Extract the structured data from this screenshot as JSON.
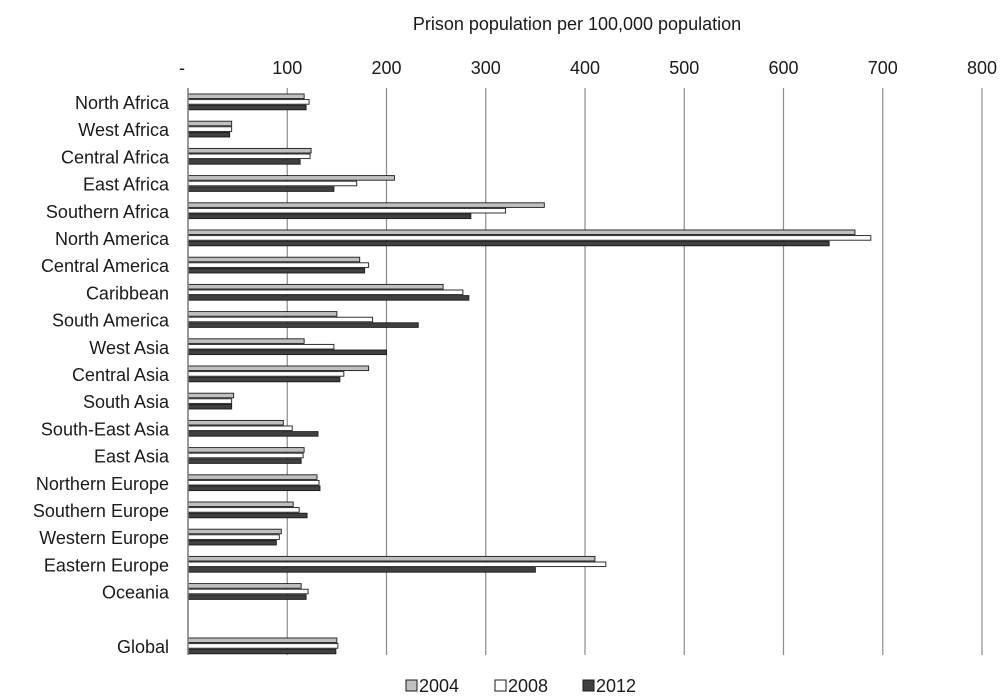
{
  "chart_data": {
    "type": "bar",
    "orientation": "horizontal",
    "title": "",
    "xlabel": "Prison population per 100,000 population",
    "ylabel": "",
    "xlim": [
      0,
      800
    ],
    "x_axis_position": "top",
    "x_ticks": [
      0,
      100,
      200,
      300,
      400,
      500,
      600,
      700,
      800
    ],
    "x_tick_labels": [
      "-",
      "100",
      "200",
      "300",
      "400",
      "500",
      "600",
      "700",
      "800"
    ],
    "grid": "vertical gridlines at each major tick",
    "legend_position": "bottom",
    "categories": [
      "North Africa",
      "West Africa",
      "Central Africa",
      "East Africa",
      "Southern Africa",
      "North America",
      "Central America",
      "Caribbean",
      "South America",
      "West Asia",
      "Central Asia",
      "South Asia",
      "South-East Asia",
      "East Asia",
      "Northern Europe",
      "Southern Europe",
      "Western Europe",
      "Eastern Europe",
      "Oceania",
      "",
      "Global"
    ],
    "series": [
      {
        "name": "2004",
        "color": "#c0c0c0",
        "values": [
          117,
          44,
          124,
          208,
          359,
          672,
          173,
          257,
          150,
          117,
          182,
          46,
          96,
          117,
          130,
          106,
          94,
          410,
          114,
          null,
          150
        ]
      },
      {
        "name": "2008",
        "color": "#ffffff",
        "values": [
          122,
          44,
          123,
          170,
          320,
          688,
          182,
          277,
          186,
          147,
          157,
          44,
          105,
          116,
          132,
          112,
          92,
          421,
          121,
          null,
          151
        ]
      },
      {
        "name": "2012",
        "color": "#404040",
        "values": [
          119,
          42,
          113,
          147,
          285,
          646,
          178,
          283,
          232,
          200,
          153,
          44,
          131,
          114,
          133,
          120,
          89,
          350,
          119,
          null,
          149
        ]
      }
    ]
  }
}
